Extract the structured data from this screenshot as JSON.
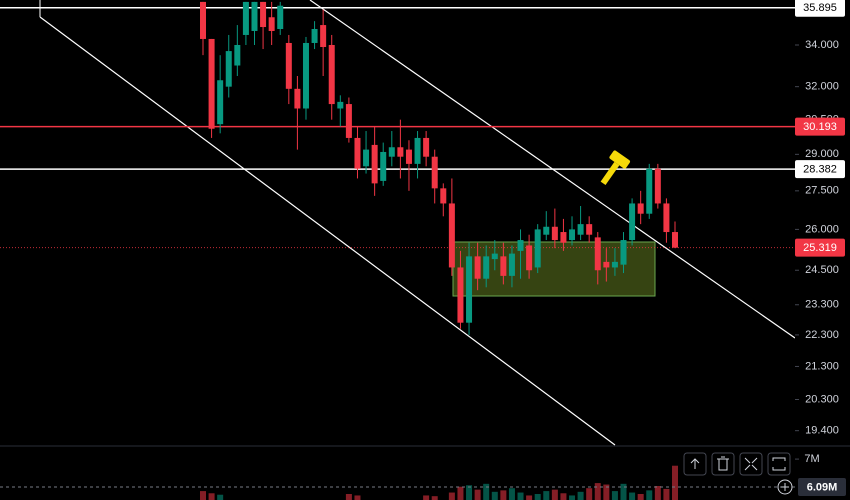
{
  "chart_data": {
    "type": "candlestick",
    "log_scale": true,
    "ylim": [
      19.0,
      36.3
    ],
    "yticks": [
      {
        "value": 34,
        "label": "34.000"
      },
      {
        "value": 32,
        "label": "32.000"
      },
      {
        "value": 30.5,
        "label": "30.500"
      },
      {
        "value": 29,
        "label": "29.000"
      },
      {
        "value": 27.5,
        "label": "27.500"
      },
      {
        "value": 26,
        "label": "26.000"
      },
      {
        "value": 24.5,
        "label": "24.500"
      },
      {
        "value": 23.3,
        "label": "23.300"
      },
      {
        "value": 22.3,
        "label": "22.300"
      },
      {
        "value": 21.3,
        "label": "21.300"
      },
      {
        "value": 20.3,
        "label": "20.300"
      },
      {
        "value": 19.4,
        "label": "19.400"
      }
    ],
    "up_color": "#089981",
    "down_color": "#f23645",
    "open": [
      36.2,
      34.3,
      30.3,
      32.0,
      33.0,
      34.5,
      34.7,
      36.2,
      35.4,
      34.8,
      34.1,
      31.9,
      31.0,
      34.1,
      35.0,
      34.0,
      31.0,
      31.2,
      29.7,
      28.5,
      29.4,
      27.9,
      28.9,
      29.3,
      29.2,
      28.6,
      29.7,
      28.9,
      27.6,
      27.0,
      24.6,
      22.7,
      25.0,
      24.2,
      24.9,
      25.0,
      24.3,
      25.2,
      25.4,
      24.6,
      25.8,
      26.1,
      25.9,
      25.6,
      25.8,
      26.2,
      25.7,
      24.8,
      24.6,
      24.7,
      25.6,
      27.0,
      26.6,
      28.4,
      27.0,
      25.9
    ],
    "high": [
      36.2,
      34.3,
      33.5,
      34.5,
      35.0,
      36.2,
      36.2,
      36.2,
      36.2,
      36.2,
      34.5,
      32.5,
      34.4,
      35.2,
      35.8,
      34.5,
      31.6,
      31.5,
      30.2,
      30.0,
      30.2,
      29.5,
      30.0,
      30.5,
      29.6,
      30.0,
      30.0,
      29.2,
      27.8,
      28.0,
      25.2,
      25.5,
      25.5,
      25.4,
      25.6,
      25.5,
      25.4,
      26.0,
      25.8,
      26.2,
      26.7,
      26.8,
      26.4,
      26.5,
      26.9,
      26.5,
      25.9,
      25.3,
      25.3,
      25.9,
      27.2,
      27.5,
      28.6,
      28.6,
      27.2,
      26.3
    ],
    "low": [
      33.5,
      29.7,
      29.9,
      31.5,
      32.5,
      34.0,
      34.0,
      33.8,
      34.0,
      34.5,
      31.2,
      29.2,
      30.5,
      33.8,
      32.5,
      30.5,
      30.2,
      29.5,
      28.0,
      28.2,
      27.3,
      27.7,
      28.5,
      28.0,
      27.5,
      28.0,
      28.5,
      27.0,
      26.5,
      24.3,
      22.5,
      22.3,
      23.8,
      23.9,
      24.5,
      24.0,
      23.9,
      24.2,
      24.2,
      24.4,
      25.6,
      25.3,
      25.2,
      25.4,
      25.6,
      25.5,
      24.0,
      24.1,
      24.3,
      24.4,
      25.4,
      26.2,
      26.4,
      26.8,
      25.5,
      25.3
    ],
    "close": [
      34.3,
      30.1,
      32.3,
      33.7,
      34.0,
      36.2,
      36.2,
      34.9,
      34.7,
      36.0,
      31.9,
      31.0,
      34.1,
      34.8,
      33.9,
      31.2,
      31.3,
      29.7,
      28.4,
      29.2,
      27.8,
      29.1,
      29.3,
      28.9,
      28.6,
      29.7,
      28.9,
      27.6,
      27.0,
      24.6,
      22.7,
      25.0,
      24.2,
      25.0,
      25.1,
      24.3,
      25.1,
      25.6,
      24.5,
      26.0,
      26.1,
      25.6,
      25.5,
      26.0,
      26.2,
      25.8,
      24.5,
      24.6,
      24.8,
      25.6,
      27.0,
      26.6,
      28.4,
      27.0,
      25.9,
      25.319
    ],
    "levels": [
      {
        "value": 35.895,
        "color": "#ffffff"
      },
      {
        "value": 30.193,
        "color": "#f23645"
      },
      {
        "value": 28.382,
        "color": "#ffffff"
      },
      {
        "value": 25.319,
        "color": "#f23645",
        "style": "dotted"
      }
    ],
    "volume": {
      "ylim": [
        0,
        8.8
      ],
      "yticks": [
        {
          "value": 7,
          "label": "7M"
        }
      ],
      "values": [
        2.6,
        2.3,
        2.1,
        1.0,
        1.0,
        1.0,
        1.0,
        1.0,
        1.0,
        1.0,
        1.0,
        1.0,
        1.0,
        1.0,
        1.0,
        1.0,
        1.0,
        2.2,
        2.0,
        1.0,
        1.0,
        1.0,
        1.0,
        1.0,
        1.0,
        1.0,
        2.0,
        1.9,
        1.0,
        2.4,
        3.2,
        3.4,
        2.8,
        3.6,
        2.5,
        2.7,
        3.0,
        2.4,
        2.0,
        2.2,
        2.6,
        2.8,
        2.3,
        2.0,
        2.5,
        3.0,
        3.7,
        3.5,
        2.6,
        3.6,
        2.4,
        2.2,
        2.7,
        3.3,
        2.9,
        6.09
      ],
      "last_label": "6.09M"
    }
  }
}
